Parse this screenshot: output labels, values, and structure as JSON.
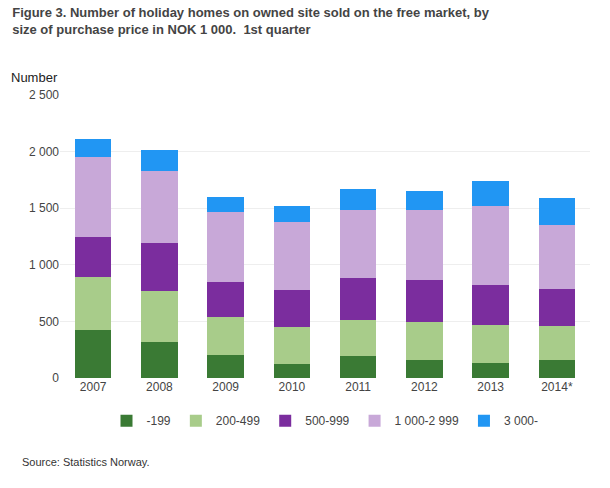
{
  "chart_data": {
    "type": "bar",
    "stacked": true,
    "title": "Figure 3. Number of holiday homes on owned site sold on the free market, by\nsize of purchase price in NOK 1 000.  1st quarter",
    "ylabel": "Number",
    "annotations": [
      "Source: Statistics Norway."
    ],
    "categories": [
      "2007",
      "2008",
      "2009",
      "2010",
      "2011",
      "2012",
      "2013",
      "2014*"
    ],
    "series": [
      {
        "name": "-199",
        "color": "#3a7a34",
        "values": [
          420,
          315,
          200,
          120,
          190,
          155,
          130,
          160
        ]
      },
      {
        "name": "200-499",
        "color": "#a8cc8a",
        "values": [
          470,
          450,
          340,
          330,
          320,
          340,
          340,
          300
        ]
      },
      {
        "name": "500-999",
        "color": "#7b2d9e",
        "values": [
          360,
          430,
          310,
          330,
          370,
          370,
          350,
          330
        ]
      },
      {
        "name": "1 000-2 999",
        "color": "#c8a8d8",
        "values": [
          700,
          635,
          620,
          600,
          600,
          620,
          700,
          560
        ]
      },
      {
        "name": "3 000-",
        "color": "#2196f3",
        "values": [
          160,
          180,
          130,
          140,
          190,
          165,
          220,
          240
        ]
      }
    ],
    "ylim": [
      0,
      2500
    ],
    "yticks": [
      0,
      500,
      {
        "value": 1000,
        "label": "1 000"
      },
      {
        "value": 1500,
        "label": "1 500"
      },
      {
        "value": 2000,
        "label": "2 000"
      },
      {
        "value": 2500,
        "label": "2 500"
      }
    ],
    "grid": true,
    "legend": "bottom"
  }
}
